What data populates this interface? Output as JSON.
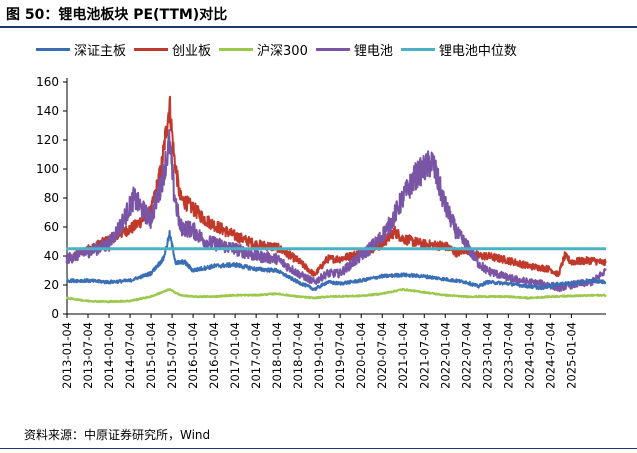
{
  "header": {
    "title": "图 50：锂电池板块 PE(TTM)对比"
  },
  "footer": {
    "source": "资料来源：中原证券研究所，Wind"
  },
  "colors": {
    "shenzhen_main": "#3a6fb5",
    "chinext": "#c0392b",
    "hushen300": "#9cc94b",
    "lithium": "#7b55a5",
    "lithium_median": "#4bb2c4"
  },
  "chart_data": {
    "type": "line",
    "title": "锂电池板块 PE(TTM)对比",
    "ylim": [
      0,
      160
    ],
    "yticks": [
      0,
      20,
      40,
      60,
      80,
      100,
      120,
      140,
      160
    ],
    "x_start": "2013-01-04",
    "x_end": "2025-10-31",
    "xticks": [
      "2013-01-04",
      "2013-07-04",
      "2014-01-04",
      "2014-07-04",
      "2015-01-04",
      "2015-07-04",
      "2016-01-04",
      "2016-07-04",
      "2017-01-04",
      "2017-07-04",
      "2018-01-04",
      "2018-07-04",
      "2019-01-04",
      "2019-07-04",
      "2020-01-04",
      "2020-07-04",
      "2021-01-04",
      "2021-07-04",
      "2022-01-04",
      "2022-07-04",
      "2023-01-04",
      "2023-07-04",
      "2024-01-04",
      "2024-07-04",
      "2025-01-04"
    ],
    "legend_position": "top",
    "series": [
      {
        "name": "深证主板",
        "color_key": "shenzhen_main",
        "points": [
          [
            2013.0,
            23
          ],
          [
            2013.5,
            23
          ],
          [
            2014.0,
            22
          ],
          [
            2014.5,
            23
          ],
          [
            2015.0,
            28
          ],
          [
            2015.3,
            38
          ],
          [
            2015.45,
            55
          ],
          [
            2015.6,
            35
          ],
          [
            2015.8,
            36
          ],
          [
            2016.0,
            30
          ],
          [
            2016.5,
            33
          ],
          [
            2017.0,
            34
          ],
          [
            2017.5,
            31
          ],
          [
            2018.0,
            30
          ],
          [
            2018.5,
            22
          ],
          [
            2018.9,
            17
          ],
          [
            2019.2,
            22
          ],
          [
            2019.5,
            21
          ],
          [
            2020.0,
            23
          ],
          [
            2020.5,
            26
          ],
          [
            2021.0,
            27
          ],
          [
            2021.5,
            26
          ],
          [
            2022.0,
            24
          ],
          [
            2022.5,
            22
          ],
          [
            2022.8,
            19
          ],
          [
            2023.0,
            22
          ],
          [
            2023.5,
            21
          ],
          [
            2024.0,
            19
          ],
          [
            2024.3,
            18
          ],
          [
            2024.75,
            21
          ],
          [
            2025.0,
            21
          ],
          [
            2025.5,
            23
          ],
          [
            2025.83,
            22
          ]
        ]
      },
      {
        "name": "创业板",
        "color_key": "chinext",
        "points": [
          [
            2013.0,
            36
          ],
          [
            2013.3,
            42
          ],
          [
            2013.7,
            47
          ],
          [
            2014.0,
            51
          ],
          [
            2014.3,
            56
          ],
          [
            2014.6,
            60
          ],
          [
            2015.0,
            70
          ],
          [
            2015.25,
            100
          ],
          [
            2015.45,
            145
          ],
          [
            2015.55,
            110
          ],
          [
            2015.7,
            80
          ],
          [
            2016.0,
            73
          ],
          [
            2016.3,
            65
          ],
          [
            2016.6,
            60
          ],
          [
            2017.0,
            54
          ],
          [
            2017.5,
            48
          ],
          [
            2018.0,
            46
          ],
          [
            2018.5,
            37
          ],
          [
            2018.9,
            27
          ],
          [
            2019.2,
            38
          ],
          [
            2019.5,
            38
          ],
          [
            2020.0,
            42
          ],
          [
            2020.5,
            48
          ],
          [
            2020.8,
            57
          ],
          [
            2021.0,
            52
          ],
          [
            2021.5,
            48
          ],
          [
            2022.0,
            47
          ],
          [
            2022.3,
            42
          ],
          [
            2022.5,
            45
          ],
          [
            2022.8,
            40
          ],
          [
            2023.0,
            40
          ],
          [
            2023.5,
            37
          ],
          [
            2024.0,
            33
          ],
          [
            2024.5,
            31
          ],
          [
            2024.7,
            27
          ],
          [
            2024.85,
            40
          ],
          [
            2025.0,
            36
          ],
          [
            2025.5,
            37
          ],
          [
            2025.83,
            35
          ]
        ]
      },
      {
        "name": "沪深300",
        "color_key": "hushen300",
        "points": [
          [
            2013.0,
            11
          ],
          [
            2013.5,
            9
          ],
          [
            2014.0,
            8.5
          ],
          [
            2014.5,
            9
          ],
          [
            2015.0,
            12
          ],
          [
            2015.45,
            17
          ],
          [
            2015.7,
            13
          ],
          [
            2016.0,
            12
          ],
          [
            2016.5,
            12
          ],
          [
            2017.0,
            13
          ],
          [
            2017.5,
            13
          ],
          [
            2018.0,
            14
          ],
          [
            2018.5,
            12
          ],
          [
            2018.9,
            11
          ],
          [
            2019.2,
            12
          ],
          [
            2020.0,
            12.5
          ],
          [
            2020.5,
            14
          ],
          [
            2021.0,
            17
          ],
          [
            2021.5,
            15
          ],
          [
            2022.0,
            13
          ],
          [
            2022.5,
            12
          ],
          [
            2023.0,
            12
          ],
          [
            2023.5,
            12
          ],
          [
            2024.0,
            11
          ],
          [
            2024.5,
            12
          ],
          [
            2025.0,
            12.5
          ],
          [
            2025.83,
            13
          ]
        ]
      },
      {
        "name": "锂电池",
        "color_key": "lithium",
        "points": [
          [
            2013.0,
            38
          ],
          [
            2013.5,
            43
          ],
          [
            2014.0,
            48
          ],
          [
            2014.3,
            62
          ],
          [
            2014.6,
            80
          ],
          [
            2014.8,
            72
          ],
          [
            2015.0,
            65
          ],
          [
            2015.25,
            90
          ],
          [
            2015.45,
            118
          ],
          [
            2015.55,
            85
          ],
          [
            2015.7,
            60
          ],
          [
            2016.0,
            58
          ],
          [
            2016.3,
            50
          ],
          [
            2016.6,
            48
          ],
          [
            2017.0,
            45
          ],
          [
            2017.5,
            40
          ],
          [
            2018.0,
            38
          ],
          [
            2018.5,
            28
          ],
          [
            2018.9,
            22
          ],
          [
            2019.2,
            28
          ],
          [
            2019.5,
            28
          ],
          [
            2020.0,
            40
          ],
          [
            2020.4,
            50
          ],
          [
            2020.7,
            62
          ],
          [
            2021.0,
            80
          ],
          [
            2021.3,
            95
          ],
          [
            2021.5,
            100
          ],
          [
            2021.7,
            105
          ],
          [
            2021.9,
            85
          ],
          [
            2022.0,
            75
          ],
          [
            2022.3,
            55
          ],
          [
            2022.5,
            48
          ],
          [
            2022.8,
            35
          ],
          [
            2023.0,
            30
          ],
          [
            2023.5,
            25
          ],
          [
            2024.0,
            22
          ],
          [
            2024.5,
            20
          ],
          [
            2024.7,
            18
          ],
          [
            2025.0,
            20
          ],
          [
            2025.5,
            22
          ],
          [
            2025.83,
            30
          ]
        ]
      },
      {
        "name": "锂电池中位数",
        "color_key": "lithium_median",
        "points": [
          [
            2013.0,
            45
          ],
          [
            2025.83,
            45
          ]
        ]
      }
    ]
  }
}
